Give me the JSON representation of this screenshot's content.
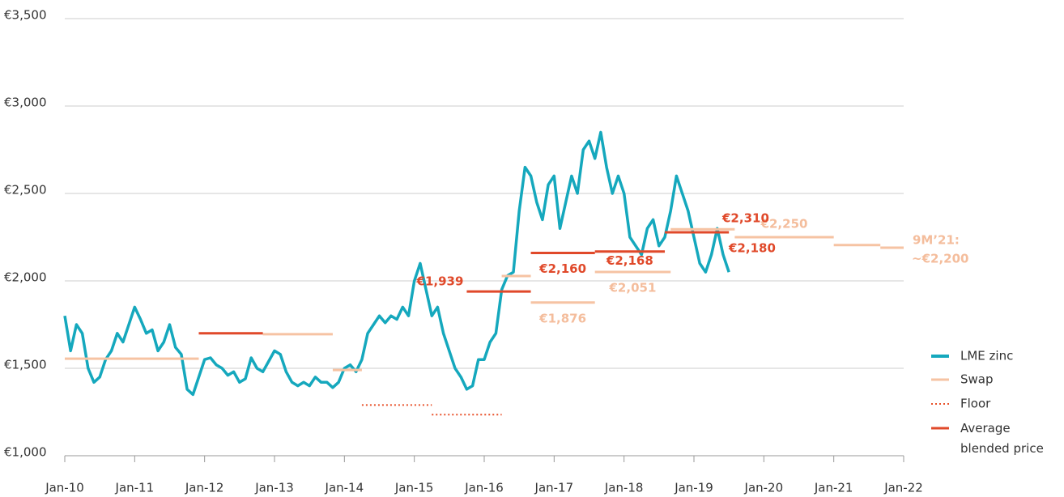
{
  "chart_data": {
    "type": "line",
    "xlim": [
      "Jan-10",
      "Jan-22"
    ],
    "xticks": [
      "Jan-10",
      "Jan-11",
      "Jan-12",
      "Jan-13",
      "Jan-14",
      "Jan-15",
      "Jan-16",
      "Jan-17",
      "Jan-18",
      "Jan-19",
      "Jan-20",
      "Jan-21",
      "Jan-22"
    ],
    "ylim": [
      1000,
      3500
    ],
    "yticks": [
      {
        "value": 1000,
        "label": "€1,000"
      },
      {
        "value": 1500,
        "label": "€1,500"
      },
      {
        "value": 2000,
        "label": "€2,000"
      },
      {
        "value": 2500,
        "label": "€2,500"
      },
      {
        "value": 3000,
        "label": "€3,000"
      },
      {
        "value": 3500,
        "label": "€3,500"
      }
    ],
    "grid": true,
    "legend": "lower right",
    "series": [
      {
        "name": "LME zinc",
        "color": "#15a8bd",
        "x": [
          "Jan-10",
          "Feb-10",
          "Mar-10",
          "Apr-10",
          "May-10",
          "Jun-10",
          "Jul-10",
          "Aug-10",
          "Sep-10",
          "Oct-10",
          "Nov-10",
          "Dec-10",
          "Jan-11",
          "Feb-11",
          "Mar-11",
          "Apr-11",
          "May-11",
          "Jun-11",
          "Jul-11",
          "Aug-11",
          "Sep-11",
          "Oct-11",
          "Nov-11",
          "Dec-11",
          "Jan-12",
          "Feb-12",
          "Mar-12",
          "Apr-12",
          "May-12",
          "Jun-12",
          "Jul-12",
          "Aug-12",
          "Sep-12",
          "Oct-12",
          "Nov-12",
          "Dec-12",
          "Jan-13",
          "Feb-13",
          "Mar-13",
          "Apr-13",
          "May-13",
          "Jun-13",
          "Jul-13",
          "Aug-13",
          "Sep-13",
          "Oct-13",
          "Nov-13",
          "Dec-13",
          "Jan-14",
          "Feb-14",
          "Mar-14",
          "Apr-14",
          "May-14",
          "Jun-14",
          "Jul-14",
          "Aug-14",
          "Sep-14",
          "Oct-14",
          "Nov-14",
          "Dec-14",
          "Jan-15",
          "Feb-15",
          "Mar-15",
          "Apr-15",
          "May-15",
          "Jun-15",
          "Jul-15",
          "Aug-15",
          "Sep-15",
          "Oct-15",
          "Nov-15",
          "Dec-15",
          "Jan-16",
          "Feb-16",
          "Mar-16",
          "Apr-16",
          "May-16",
          "Jun-16",
          "Jul-16",
          "Aug-16",
          "Sep-16",
          "Oct-16",
          "Nov-16",
          "Dec-16",
          "Jan-17",
          "Feb-17",
          "Mar-17",
          "Apr-17",
          "May-17",
          "Jun-17",
          "Jul-17",
          "Aug-17",
          "Sep-17",
          "Oct-17",
          "Nov-17",
          "Dec-17",
          "Jan-18",
          "Feb-18",
          "Mar-18",
          "Apr-18",
          "May-18",
          "Jun-18",
          "Jul-18",
          "Aug-18",
          "Sep-18",
          "Oct-18",
          "Nov-18",
          "Dec-18",
          "Jan-19",
          "Feb-19",
          "Mar-19",
          "Apr-19",
          "May-19",
          "Jun-19",
          "Jul-19"
        ],
        "values": [
          1800,
          1600,
          1750,
          1700,
          1500,
          1420,
          1450,
          1550,
          1600,
          1700,
          1650,
          1750,
          1850,
          1780,
          1700,
          1720,
          1600,
          1650,
          1750,
          1620,
          1580,
          1380,
          1350,
          1450,
          1550,
          1560,
          1520,
          1500,
          1460,
          1480,
          1420,
          1440,
          1560,
          1500,
          1480,
          1540,
          1600,
          1580,
          1480,
          1420,
          1400,
          1420,
          1400,
          1450,
          1420,
          1420,
          1390,
          1420,
          1500,
          1520,
          1480,
          1550,
          1700,
          1750,
          1800,
          1760,
          1800,
          1780,
          1850,
          1800,
          2000,
          2100,
          1950,
          1800,
          1850,
          1700,
          1600,
          1500,
          1450,
          1380,
          1400,
          1550,
          1550,
          1650,
          1700,
          1950,
          2030,
          2050,
          2400,
          2650,
          2600,
          2450,
          2350,
          2550,
          2600,
          2300,
          2450,
          2600,
          2500,
          2750,
          2800,
          2700,
          2850,
          2650,
          2500,
          2600,
          2500,
          2250,
          2200,
          2150,
          2300,
          2350,
          2200,
          2250,
          2400,
          2600,
          2500,
          2400,
          2250,
          2100,
          2050,
          2150,
          2300,
          2150,
          2050
        ]
      },
      {
        "name": "Swap",
        "color": "#f6c3a3",
        "segments": [
          {
            "from": "Jan-10",
            "to": "Dec-11",
            "value": 1555
          },
          {
            "from": "Nov-12",
            "to": "Nov-13",
            "value": 1695
          },
          {
            "from": "Nov-13",
            "to": "Apr-14",
            "value": 1490
          },
          {
            "from": "Apr-16",
            "to": "Sep-16",
            "value": 2028
          },
          {
            "from": "Sep-16",
            "to": "Aug-17",
            "value": 1876,
            "value_label": "€1,876"
          },
          {
            "from": "Aug-17",
            "to": "Sep-18",
            "value": 2051,
            "value_label": "€2,051"
          },
          {
            "from": "Sep-18",
            "to": "Aug-19",
            "value": 2295
          },
          {
            "from": "Aug-19",
            "to": "Jan-21",
            "value": 2250,
            "value_label": "€2,250"
          },
          {
            "from": "Jan-21",
            "to": "Sep-21",
            "value": 2205
          },
          {
            "from": "Sep-21",
            "to": "Jan-22",
            "value": 2190,
            "value_label": "~€2,200"
          }
        ]
      },
      {
        "name": "Floor",
        "color": "#e8512a",
        "dash": true,
        "segments": [
          {
            "from": "Apr-14",
            "to": "Apr-15",
            "value": 1290
          },
          {
            "from": "Apr-15",
            "to": "Apr-16",
            "value": 1235
          }
        ]
      },
      {
        "name": "Average blended price",
        "color": "#e0492a",
        "segments": [
          {
            "from": "Dec-11",
            "to": "Nov-12",
            "value": 1700
          },
          {
            "from": "Oct-15",
            "to": "Sep-16",
            "value": 1939,
            "value_label": "€1,939"
          },
          {
            "from": "Sep-16",
            "to": "Aug-17",
            "value": 2160,
            "value_label": "€2,160"
          },
          {
            "from": "Aug-17",
            "to": "Aug-18",
            "value": 2168,
            "value_label": "€2,168"
          },
          {
            "from": "Aug-18",
            "to": "Jul-19",
            "value": 2278
          }
        ]
      }
    ],
    "annotations": [
      "€2,310",
      "€2,180",
      "9M’21:"
    ]
  }
}
